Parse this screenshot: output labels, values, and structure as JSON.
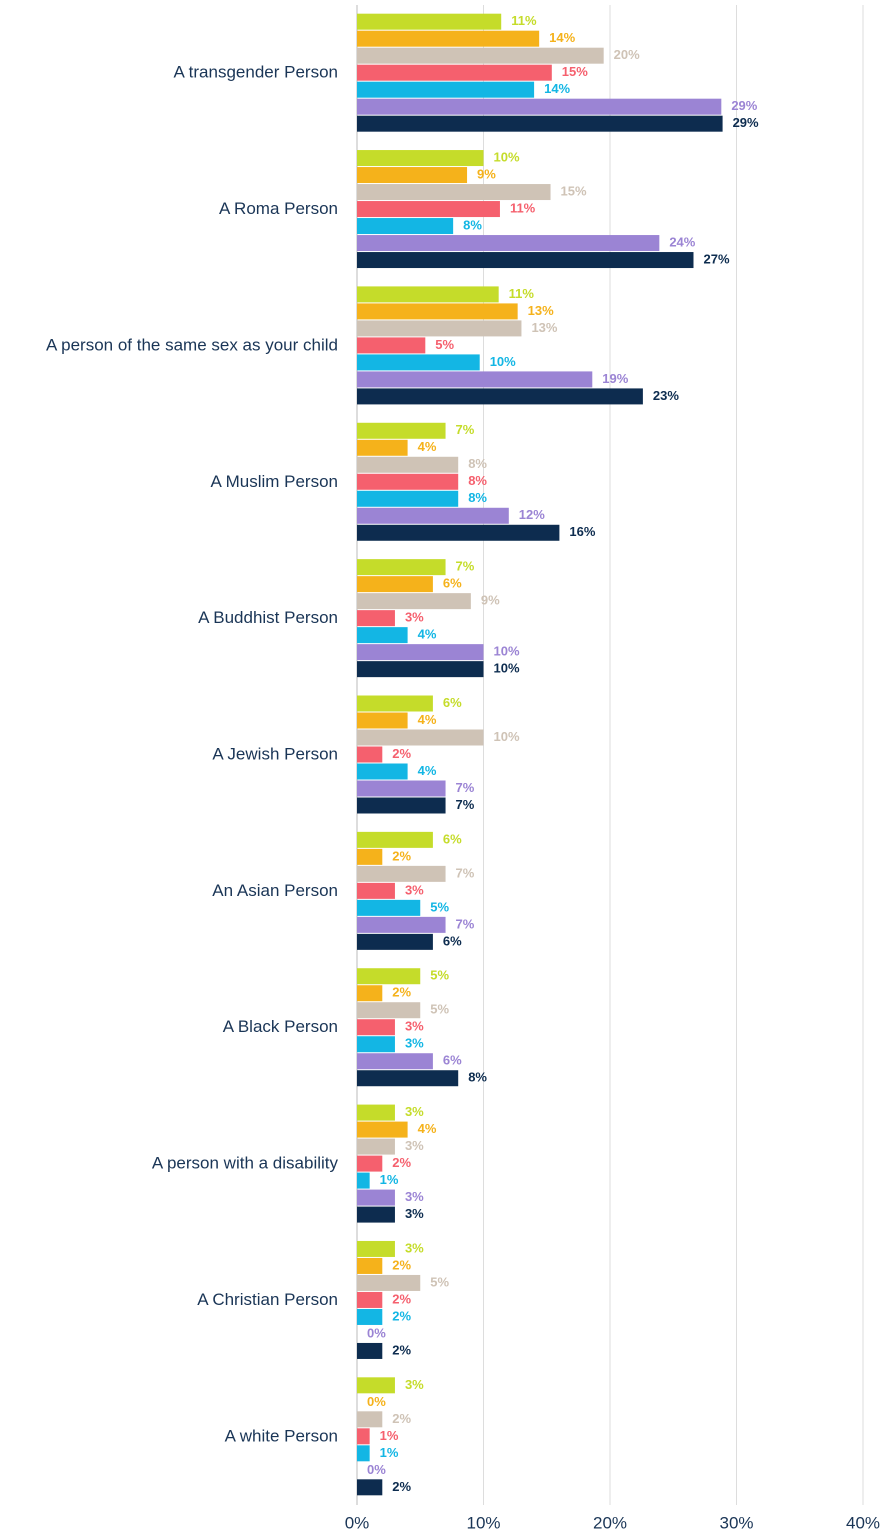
{
  "chart_data": {
    "type": "hbar",
    "categories": [
      "A transgender Person",
      "A Roma Person",
      "A person of the same sex as your child",
      "A Muslim Person",
      "A Buddhist Person",
      "A Jewish Person",
      "An Asian Person",
      "A Black Person",
      "A person with a disability",
      "A Christian Person",
      "A white Person"
    ],
    "series": [
      {
        "color": "#c5dc2a",
        "values": [
          11.4,
          10,
          11.2,
          7,
          7,
          6,
          6,
          5,
          3,
          3,
          3
        ],
        "value_labels": [
          "11%",
          "10%",
          "11%",
          "7%",
          "7%",
          "6%",
          "6%",
          "5%",
          "3%",
          "3%",
          "3%"
        ]
      },
      {
        "color": "#f5b21b",
        "values": [
          14.4,
          8.7,
          12.7,
          4,
          6,
          4,
          2,
          2,
          4,
          2,
          0
        ],
        "value_labels": [
          "14%",
          "9%",
          "13%",
          "4%",
          "6%",
          "4%",
          "2%",
          "2%",
          "4%",
          "2%",
          "0%"
        ]
      },
      {
        "color": "#cfc3b6",
        "values": [
          19.5,
          15.3,
          13,
          8,
          9,
          10,
          7,
          5,
          3,
          5,
          2
        ],
        "value_labels": [
          "20%",
          "15%",
          "13%",
          "8%",
          "9%",
          "10%",
          "7%",
          "5%",
          "3%",
          "5%",
          "2%"
        ]
      },
      {
        "color": "#f5606e",
        "values": [
          15.4,
          11.3,
          5.4,
          8,
          3,
          2,
          3,
          3,
          2,
          2,
          1
        ],
        "value_labels": [
          "15%",
          "11%",
          "5%",
          "8%",
          "3%",
          "2%",
          "3%",
          "3%",
          "2%",
          "2%",
          "1%"
        ]
      },
      {
        "color": "#13b6e4",
        "values": [
          14,
          7.6,
          9.7,
          8,
          4,
          4,
          5,
          3,
          1,
          2,
          1
        ],
        "value_labels": [
          "14%",
          "8%",
          "10%",
          "8%",
          "4%",
          "4%",
          "5%",
          "3%",
          "1%",
          "2%",
          "1%"
        ]
      },
      {
        "color": "#9b84d4",
        "values": [
          28.8,
          23.9,
          18.6,
          12,
          10,
          7,
          7,
          6,
          3,
          0,
          0
        ],
        "value_labels": [
          "29%",
          "24%",
          "19%",
          "12%",
          "10%",
          "7%",
          "7%",
          "6%",
          "3%",
          "0%",
          "0%"
        ]
      },
      {
        "color": "#0d2c4f",
        "values": [
          28.9,
          26.6,
          22.6,
          16,
          10,
          7,
          6,
          8,
          3,
          2,
          2
        ],
        "value_labels": [
          "29%",
          "27%",
          "23%",
          "16%",
          "10%",
          "7%",
          "6%",
          "8%",
          "3%",
          "2%",
          "2%"
        ]
      }
    ],
    "xlim": [
      0,
      40
    ],
    "xticks": [
      {
        "value": 0,
        "label": "0%"
      },
      {
        "value": 10,
        "label": "10%"
      },
      {
        "value": 20,
        "label": "20%"
      },
      {
        "value": 30,
        "label": "30%"
      },
      {
        "value": 40,
        "label": "40%"
      }
    ],
    "grid": true
  }
}
